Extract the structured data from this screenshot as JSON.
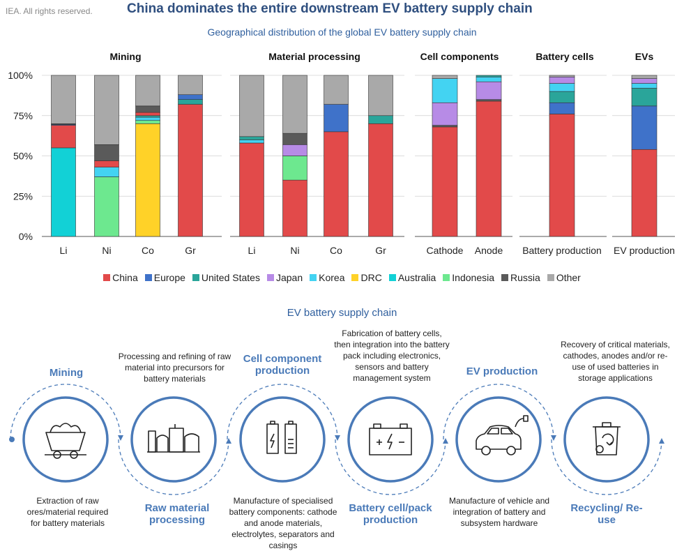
{
  "header": {
    "credit": "IEA. All rights reserved.",
    "title": "China dominates the entire downstream EV battery supply chain",
    "subtitle": "Geographical distribution of the global EV battery supply chain"
  },
  "chart_data": {
    "type": "bar",
    "stacked": true,
    "title": "Geographical distribution of the global EV battery supply chain",
    "yticks": [
      "0%",
      "25%",
      "50%",
      "75%",
      "100%"
    ],
    "ylim": [
      0,
      100
    ],
    "countries": [
      "China",
      "Europe",
      "United States",
      "Japan",
      "Korea",
      "DRC",
      "Australia",
      "Indonesia",
      "Russia",
      "Other"
    ],
    "colors": {
      "China": "#e24a4a",
      "Europe": "#3f72c9",
      "United States": "#2aa59a",
      "Japan": "#b78be6",
      "Korea": "#43d3f2",
      "DRC": "#ffd228",
      "Australia": "#12d1d6",
      "Indonesia": "#6de88f",
      "Russia": "#5a5a5a",
      "Other": "#a9a9a9"
    },
    "groups": [
      {
        "name": "Mining",
        "bars": [
          {
            "label": "Li",
            "segments": [
              {
                "country": "Australia",
                "value": 55
              },
              {
                "country": "China",
                "value": 14
              },
              {
                "country": "Europe",
                "value": 0.5
              },
              {
                "country": "Russia",
                "value": 0.5
              },
              {
                "country": "Other",
                "value": 30
              }
            ]
          },
          {
            "label": "Ni",
            "segments": [
              {
                "country": "Indonesia",
                "value": 37
              },
              {
                "country": "Korea",
                "value": 6
              },
              {
                "country": "China",
                "value": 4
              },
              {
                "country": "Russia",
                "value": 10
              },
              {
                "country": "Other",
                "value": 43
              }
            ]
          },
          {
            "label": "Co",
            "segments": [
              {
                "country": "DRC",
                "value": 70
              },
              {
                "country": "Indonesia",
                "value": 2
              },
              {
                "country": "Korea",
                "value": 2
              },
              {
                "country": "United States",
                "value": 1
              },
              {
                "country": "China",
                "value": 2
              },
              {
                "country": "Russia",
                "value": 4
              },
              {
                "country": "Other",
                "value": 19
              }
            ]
          },
          {
            "label": "Gr",
            "segments": [
              {
                "country": "China",
                "value": 82
              },
              {
                "country": "United States",
                "value": 3
              },
              {
                "country": "Europe",
                "value": 3
              },
              {
                "country": "Other",
                "value": 12
              }
            ]
          }
        ]
      },
      {
        "name": "Material processing",
        "bars": [
          {
            "label": "Li",
            "segments": [
              {
                "country": "China",
                "value": 58
              },
              {
                "country": "Korea",
                "value": 2
              },
              {
                "country": "United States",
                "value": 2
              },
              {
                "country": "Other",
                "value": 38
              }
            ]
          },
          {
            "label": "Ni",
            "segments": [
              {
                "country": "China",
                "value": 35
              },
              {
                "country": "Indonesia",
                "value": 15
              },
              {
                "country": "Japan",
                "value": 7
              },
              {
                "country": "Russia",
                "value": 7
              },
              {
                "country": "Other",
                "value": 36
              }
            ]
          },
          {
            "label": "Co",
            "segments": [
              {
                "country": "China",
                "value": 65
              },
              {
                "country": "Europe",
                "value": 17
              },
              {
                "country": "Other",
                "value": 18
              }
            ]
          },
          {
            "label": "Gr",
            "segments": [
              {
                "country": "China",
                "value": 70
              },
              {
                "country": "United States",
                "value": 5
              },
              {
                "country": "Other",
                "value": 25
              }
            ]
          }
        ]
      },
      {
        "name": "Cell components",
        "bars": [
          {
            "label": "Cathode",
            "segments": [
              {
                "country": "China",
                "value": 68
              },
              {
                "country": "Russia",
                "value": 1
              },
              {
                "country": "Japan",
                "value": 14
              },
              {
                "country": "Korea",
                "value": 15
              },
              {
                "country": "Other",
                "value": 2
              }
            ]
          },
          {
            "label": "Anode",
            "segments": [
              {
                "country": "China",
                "value": 84
              },
              {
                "country": "Russia",
                "value": 1
              },
              {
                "country": "Japan",
                "value": 11
              },
              {
                "country": "Korea",
                "value": 3
              },
              {
                "country": "United States",
                "value": 1
              }
            ]
          }
        ]
      },
      {
        "name": "Battery cells",
        "bars": [
          {
            "label": "Battery production",
            "segments": [
              {
                "country": "China",
                "value": 76
              },
              {
                "country": "Europe",
                "value": 7
              },
              {
                "country": "United States",
                "value": 7
              },
              {
                "country": "Korea",
                "value": 5
              },
              {
                "country": "Japan",
                "value": 4
              },
              {
                "country": "Other",
                "value": 1
              }
            ]
          }
        ]
      },
      {
        "name": "EVs",
        "bars": [
          {
            "label": "EV production",
            "segments": [
              {
                "country": "China",
                "value": 54
              },
              {
                "country": "Europe",
                "value": 27
              },
              {
                "country": "United States",
                "value": 11
              },
              {
                "country": "Korea",
                "value": 3
              },
              {
                "country": "Japan",
                "value": 3
              },
              {
                "country": "Other",
                "value": 2
              }
            ]
          }
        ]
      }
    ]
  },
  "legend": {
    "items": [
      "China",
      "Europe",
      "United States",
      "Japan",
      "Korea",
      "DRC",
      "Australia",
      "Indonesia",
      "Russia",
      "Other"
    ]
  },
  "supply_chain": {
    "title": "EV battery supply chain",
    "stages": [
      {
        "name": "Mining",
        "icon": "mining-cart-icon",
        "description": "Extraction of raw ores/material required for battery materials"
      },
      {
        "name": "Raw material processing",
        "icon": "factory-icon",
        "description": "Processing and refining of raw material into precursors for battery materials"
      },
      {
        "name": "Cell component production",
        "icon": "battery-cells-icon",
        "description": "Manufacture of specialised battery components: cathode and anode materials, electrolytes, separators and casings"
      },
      {
        "name": "Battery cell/pack production",
        "icon": "battery-pack-icon",
        "description": "Fabrication of battery cells, then integration into the battery pack including electronics, sensors and battery management system"
      },
      {
        "name": "EV production",
        "icon": "electric-car-icon",
        "description": "Manufacture of vehicle and integration of battery and subsystem hardware"
      },
      {
        "name": "Recycling/ Re-use",
        "icon": "recycling-bin-icon",
        "description": "Recovery of critical materials, cathodes, anodes and/or re-use of used batteries in storage applications"
      }
    ]
  }
}
